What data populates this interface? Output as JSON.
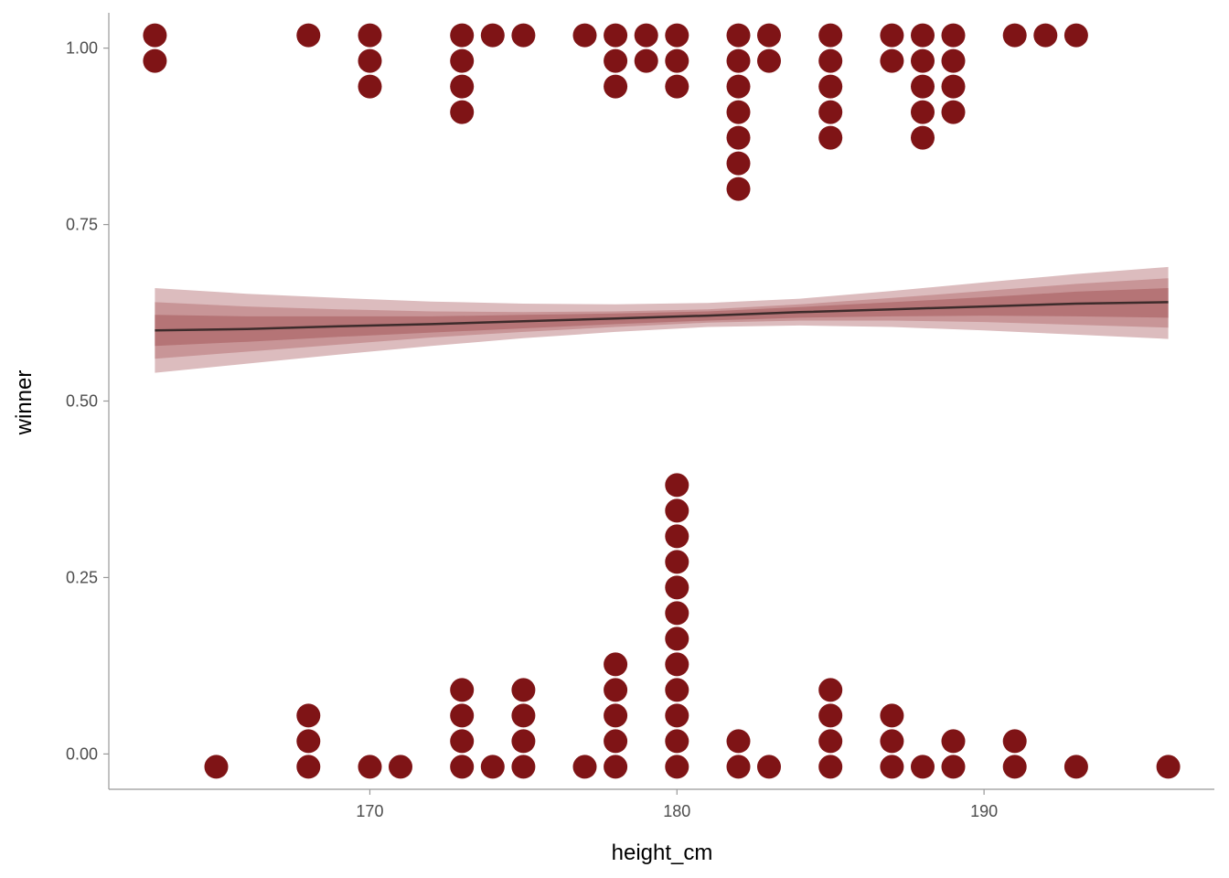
{
  "chart_data": {
    "type": "scatter",
    "xlabel": "height_cm",
    "ylabel": "winner",
    "xlim": [
      161.5,
      197.5
    ],
    "ylim": [
      -0.05,
      1.05
    ],
    "x_ticks": [
      170,
      180,
      190
    ],
    "x_tick_labels": [
      "170",
      "180",
      "190"
    ],
    "y_ticks": [
      0,
      0.25,
      0.5,
      0.75,
      1
    ],
    "y_tick_labels": [
      "0.00",
      "0.25",
      "0.50",
      "0.75",
      "1.00"
    ],
    "grid": false,
    "colors": {
      "points": "#7f1416",
      "fit_line": "#3d2b2b",
      "band_outer": "#dcbcbe",
      "band_mid": "#c89597",
      "band_inner": "#b57476",
      "axis": "#999999"
    },
    "dots_winners": {
      "value": 1,
      "x": [
        163,
        168,
        170,
        173,
        174,
        175,
        177,
        178,
        179,
        180,
        182,
        183,
        185,
        187,
        188,
        189,
        191,
        192,
        193
      ],
      "counts": [
        2,
        1,
        3,
        4,
        1,
        1,
        1,
        3,
        2,
        3,
        7,
        2,
        5,
        2,
        5,
        4,
        1,
        1,
        1
      ]
    },
    "dots_losers": {
      "value": 0,
      "x": [
        165,
        168,
        170,
        171,
        173,
        174,
        175,
        177,
        178,
        180,
        182,
        183,
        185,
        187,
        188,
        189,
        191,
        193,
        196
      ],
      "counts": [
        1,
        3,
        1,
        1,
        4,
        1,
        4,
        1,
        5,
        12,
        2,
        1,
        4,
        3,
        1,
        2,
        2,
        1,
        1
      ]
    },
    "fit": {
      "x": [
        163,
        166,
        169,
        172,
        175,
        178,
        181,
        184,
        187,
        190,
        193,
        196
      ],
      "y": [
        0.6,
        0.602,
        0.606,
        0.609,
        0.613,
        0.617,
        0.621,
        0.626,
        0.63,
        0.634,
        0.638,
        0.64
      ],
      "band_outer_lower": [
        0.54,
        0.553,
        0.566,
        0.578,
        0.589,
        0.598,
        0.605,
        0.607,
        0.605,
        0.6,
        0.594,
        0.588
      ],
      "band_outer_upper": [
        0.66,
        0.652,
        0.646,
        0.641,
        0.638,
        0.637,
        0.639,
        0.645,
        0.656,
        0.668,
        0.68,
        0.69
      ],
      "band_mid_lower": [
        0.56,
        0.57,
        0.58,
        0.59,
        0.598,
        0.605,
        0.611,
        0.614,
        0.614,
        0.612,
        0.608,
        0.604
      ],
      "band_mid_upper": [
        0.64,
        0.634,
        0.63,
        0.627,
        0.626,
        0.627,
        0.63,
        0.637,
        0.646,
        0.656,
        0.666,
        0.674
      ],
      "band_inner_lower": [
        0.578,
        0.584,
        0.591,
        0.597,
        0.603,
        0.609,
        0.614,
        0.618,
        0.62,
        0.621,
        0.62,
        0.618
      ],
      "band_inner_upper": [
        0.622,
        0.62,
        0.62,
        0.62,
        0.622,
        0.624,
        0.627,
        0.633,
        0.64,
        0.647,
        0.655,
        0.66
      ]
    }
  }
}
